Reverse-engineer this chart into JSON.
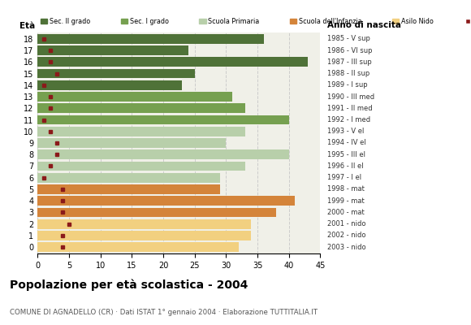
{
  "ages": [
    18,
    17,
    16,
    15,
    14,
    13,
    12,
    11,
    10,
    9,
    8,
    7,
    6,
    5,
    4,
    3,
    2,
    1,
    0
  ],
  "bar_values": [
    36,
    24,
    43,
    25,
    23,
    31,
    33,
    40,
    33,
    30,
    40,
    33,
    29,
    29,
    41,
    38,
    34,
    34,
    32
  ],
  "stranieri": [
    1,
    2,
    2,
    3,
    1,
    2,
    2,
    1,
    2,
    3,
    3,
    2,
    1,
    4,
    4,
    4,
    5,
    4,
    4
  ],
  "anno_nascita": [
    "1985 - V sup",
    "1986 - VI sup",
    "1987 - III sup",
    "1988 - II sup",
    "1989 - I sup",
    "1990 - III med",
    "1991 - II med",
    "1992 - I med",
    "1993 - V el",
    "1994 - IV el",
    "1995 - III el",
    "1996 - II el",
    "1997 - I el",
    "1998 - mat",
    "1999 - mat",
    "2000 - mat",
    "2001 - nido",
    "2002 - nido",
    "2003 - nido"
  ],
  "categories": {
    "sec2": {
      "label": "Sec. II grado",
      "color": "#4f7238",
      "ages": [
        14,
        15,
        16,
        17,
        18
      ]
    },
    "sec1": {
      "label": "Sec. I grado",
      "color": "#76a050",
      "ages": [
        11,
        12,
        13
      ]
    },
    "primaria": {
      "label": "Scuola Primaria",
      "color": "#b8cfaa",
      "ages": [
        6,
        7,
        8,
        9,
        10
      ]
    },
    "infanzia": {
      "label": "Scuola dell'Infanzia",
      "color": "#d4843a",
      "ages": [
        3,
        4,
        5
      ]
    },
    "nido": {
      "label": "Asilo Nido",
      "color": "#f2d080",
      "ages": [
        0,
        1,
        2
      ]
    }
  },
  "stranieri_color": "#8b1a1a",
  "title": "Popolazione per età scolastica - 2004",
  "subtitle": "COMUNE DI AGNADELLO (CR) · Dati ISTAT 1° gennaio 2004 · Elaborazione TUTTITALIA.IT",
  "xlabel_left": "Età",
  "xlabel_right": "Anno di nascita",
  "xlim": [
    0,
    45
  ],
  "xticks": [
    0,
    5,
    10,
    15,
    20,
    25,
    30,
    35,
    40,
    45
  ],
  "bg_color": "#ffffff",
  "plot_bg_color": "#f0f0e8",
  "grid_color": "#cccccc",
  "bar_height": 0.82
}
